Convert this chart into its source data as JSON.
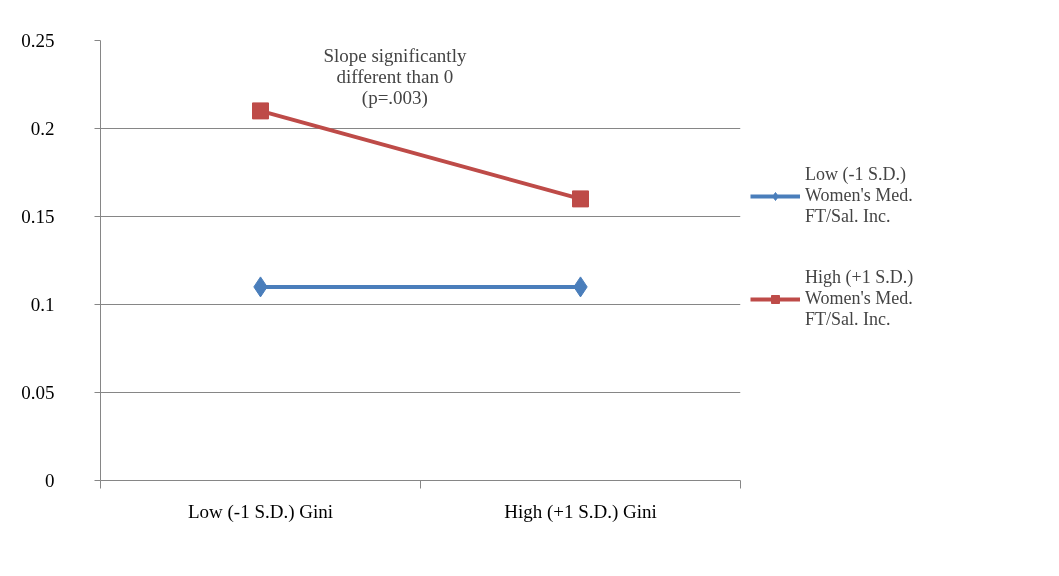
{
  "chart_data": {
    "type": "line",
    "categories": [
      "Low (-1 S.D.) Gini",
      "High (+1 S.D.) Gini"
    ],
    "series": [
      {
        "name": "Low (-1 S.D.)\nWomen's Med.\nFT/Sal. Inc.",
        "color": "#4a7ebb",
        "values": [
          0.11,
          0.11
        ],
        "marker": "diamond"
      },
      {
        "name": "High (+1 S.D.)\nWomen's Med.\nFT/Sal. Inc.",
        "color": "#be4b48",
        "values": [
          0.21,
          0.16
        ],
        "marker": "square"
      }
    ],
    "ylim": [
      0,
      0.25
    ],
    "yticks": [
      0,
      0.05,
      0.1,
      0.15,
      0.2,
      0.25
    ],
    "grid": "y",
    "legend": "right",
    "line_style": "solid",
    "annotations": [
      "Slope significantly\ndifferent than 0\n(p=.003)"
    ]
  }
}
